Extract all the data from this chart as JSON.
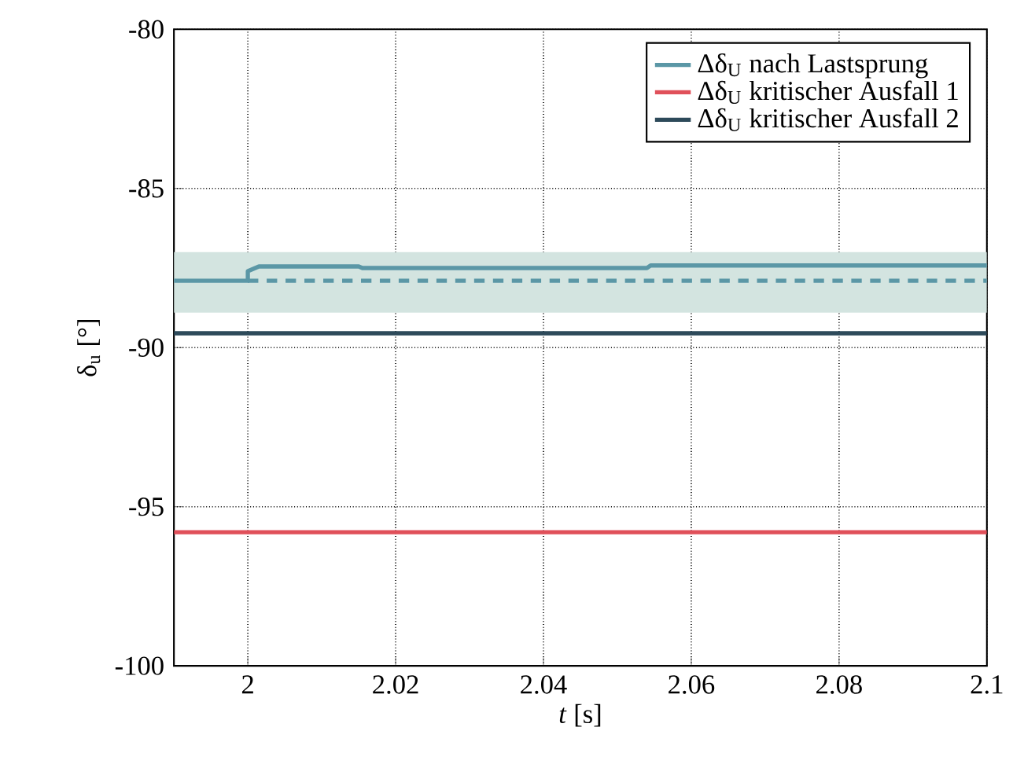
{
  "chart_data": {
    "type": "line",
    "xlabel": "*t* [s]",
    "ylabel": "δ$_{u}$ [°]",
    "xlim": [
      1.99,
      2.1
    ],
    "ylim": [
      -100,
      -80
    ],
    "xticks": [
      2,
      2.02,
      2.04,
      2.06,
      2.08,
      2.1
    ],
    "yticks": [
      -100,
      -95,
      -90,
      -85,
      -80
    ],
    "grid": true,
    "legend": "top right",
    "series": [
      {
        "name": "Δδ$_{U}$  nach Lastsprung",
        "color": "#5b97a6",
        "line_style": "solid",
        "x": [
          1.99,
          2.0,
          2.0,
          2.0015,
          2.015,
          2.0155,
          2.054,
          2.0545,
          2.1
        ],
        "values": [
          -87.9,
          -87.9,
          -87.6,
          -87.45,
          -87.45,
          -87.5,
          -87.5,
          -87.42,
          -87.42
        ]
      },
      {
        "name": "Δδ$_{U}$  kritischer Ausfall 1",
        "color": "#e0505a",
        "line_style": "solid",
        "x": [
          1.99,
          2.1
        ],
        "values": [
          -95.8,
          -95.8
        ]
      },
      {
        "name": "Δδ$_{U}$  kritischer Ausfall 2",
        "color": "#2d4a5a",
        "line_style": "solid",
        "x": [
          1.99,
          2.1
        ],
        "values": [
          -89.55,
          -89.55
        ]
      },
      {
        "color": "#5b97a6",
        "line_style": "dashed",
        "x": [
          2.0,
          2.1
        ],
        "values": [
          -87.9,
          -87.9
        ]
      }
    ],
    "bands": [
      {
        "axis": "y",
        "from": -88.9,
        "to": -87.0,
        "color": "#d3e4e0"
      }
    ]
  }
}
